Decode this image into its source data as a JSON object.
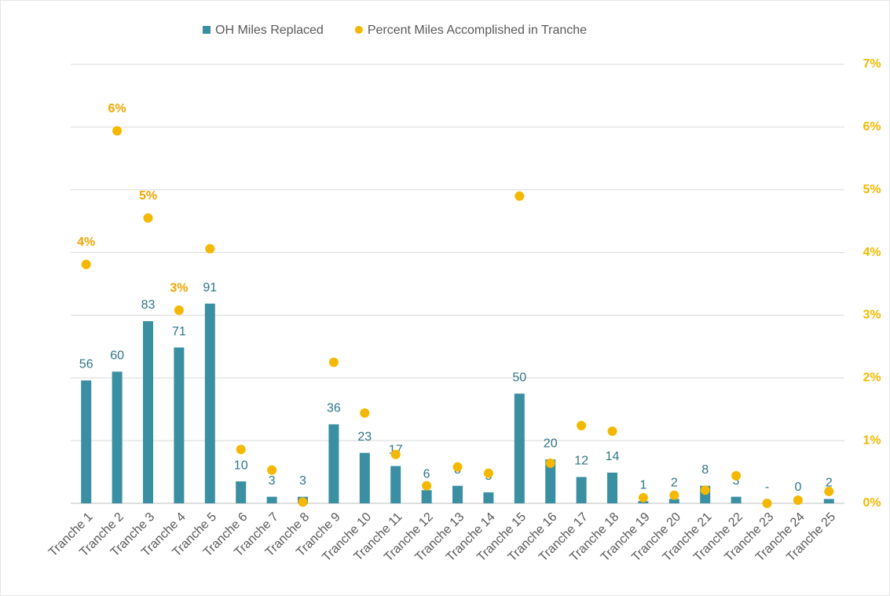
{
  "chart_data": {
    "type": "bar",
    "categories": [
      "Tranche 1",
      "Tranche 2",
      "Tranche 3",
      "Tranche 4",
      "Tranche 5",
      "Tranche 6",
      "Tranche 7",
      "Tranche 8",
      "Tranche 9",
      "Tranche 10",
      "Tranche 11",
      "Tranche 12",
      "Tranche 13",
      "Tranche 14",
      "Tranche 15",
      "Tranche 16",
      "Tranche 17",
      "Tranche 18",
      "Tranche 19",
      "Tranche 20",
      "Tranche 21",
      "Tranche 22",
      "Tranche 23",
      "Tranche 24",
      "Tranche 25"
    ],
    "ylim": [
      0,
      200
    ],
    "y2lim": [
      0,
      7
    ],
    "y2ticks": [
      {
        "value": 0,
        "label": "0%"
      },
      {
        "value": 1,
        "label": "1%"
      },
      {
        "value": 2,
        "label": "2%"
      },
      {
        "value": 3,
        "label": "3%"
      },
      {
        "value": 4,
        "label": "4%"
      },
      {
        "value": 5,
        "label": "5%"
      },
      {
        "value": 6,
        "label": "6%"
      },
      {
        "value": 7,
        "label": "7%"
      }
    ],
    "grid": true,
    "legend": "top",
    "series": [
      {
        "name": "OH Miles Replaced",
        "type": "bar",
        "color": "#3a8fa3",
        "values": [
          56,
          60,
          83,
          71,
          91,
          10,
          3,
          3,
          36,
          23,
          17,
          6,
          8,
          5,
          50,
          20,
          12,
          14,
          1,
          2,
          8,
          3,
          0,
          0,
          2
        ],
        "value_labels": [
          "56",
          "60",
          "83",
          "71",
          "91",
          "10",
          "3",
          "3",
          "36",
          "23",
          "17",
          "6",
          "8",
          "5",
          "50",
          "20",
          "12",
          "14",
          "1",
          "2",
          "8",
          "3",
          "-",
          "0",
          "2"
        ]
      },
      {
        "name": "Percent Miles Accomplished in Tranche",
        "type": "scatter",
        "axis": "y2",
        "color": "#f5b800",
        "values": [
          3.81,
          5.94,
          4.55,
          3.08,
          4.06,
          0.86,
          0.53,
          0.02,
          2.25,
          1.44,
          0.78,
          0.28,
          0.58,
          0.48,
          4.9,
          0.64,
          1.24,
          1.15,
          0.09,
          0.13,
          0.21,
          0.44,
          0,
          0.05,
          0.19
        ],
        "value_labels": [
          "4%",
          "6%",
          "5%",
          "3%",
          null,
          null,
          null,
          null,
          null,
          null,
          null,
          null,
          null,
          null,
          null,
          null,
          null,
          null,
          null,
          null,
          null,
          null,
          null,
          null,
          null
        ]
      }
    ]
  }
}
